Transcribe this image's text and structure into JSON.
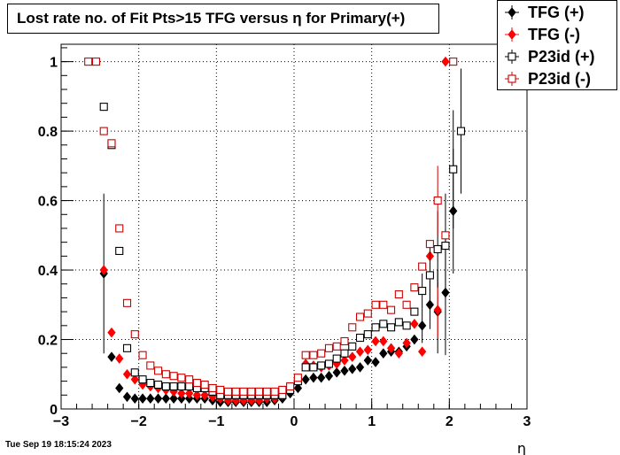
{
  "title": "Lost rate no. of Fit Pts>15 TFG versus η for Primary(+)",
  "timestamp": "Tue Sep 19 18:15:24 2023",
  "chart_data": {
    "type": "scatter",
    "xlabel": "η",
    "ylabel": "",
    "xlim": [
      -3,
      3
    ],
    "ylim": [
      0,
      1.05
    ],
    "x_ticks": [
      -3,
      -2,
      -1,
      0,
      1,
      2,
      3
    ],
    "x_tick_labels": [
      "−3",
      "−2",
      "−1",
      "0",
      "1",
      "2",
      "3"
    ],
    "y_ticks": [
      0,
      0.2,
      0.4,
      0.6,
      0.8,
      1
    ],
    "y_tick_labels": [
      "0",
      "0.2",
      "0.4",
      "0.6",
      "0.8",
      "1"
    ],
    "grid": true,
    "legend_position": "top-right",
    "series": [
      {
        "name": "TFG (+)",
        "color": "#000000",
        "marker": "diamond-filled",
        "points": [
          [
            -2.45,
            0.39,
            0.23
          ],
          [
            -2.35,
            0.15,
            0
          ],
          [
            -2.25,
            0.06,
            0
          ],
          [
            -2.15,
            0.035,
            0
          ],
          [
            -2.05,
            0.03,
            0
          ],
          [
            -1.95,
            0.03,
            0
          ],
          [
            -1.85,
            0.03,
            0
          ],
          [
            -1.75,
            0.03,
            0
          ],
          [
            -1.65,
            0.03,
            0
          ],
          [
            -1.55,
            0.03,
            0
          ],
          [
            -1.45,
            0.03,
            0
          ],
          [
            -1.35,
            0.03,
            0
          ],
          [
            -1.25,
            0.03,
            0
          ],
          [
            -1.15,
            0.03,
            0
          ],
          [
            -1.05,
            0.025,
            0
          ],
          [
            -0.95,
            0.02,
            0
          ],
          [
            -0.85,
            0.02,
            0
          ],
          [
            -0.75,
            0.02,
            0
          ],
          [
            -0.65,
            0.02,
            0
          ],
          [
            -0.55,
            0.02,
            0
          ],
          [
            -0.45,
            0.02,
            0
          ],
          [
            -0.35,
            0.02,
            0
          ],
          [
            -0.25,
            0.025,
            0
          ],
          [
            -0.15,
            0.03,
            0
          ],
          [
            -0.05,
            0.045,
            0
          ],
          [
            0.05,
            0.06,
            0
          ],
          [
            0.15,
            0.085,
            0
          ],
          [
            0.25,
            0.09,
            0
          ],
          [
            0.35,
            0.09,
            0
          ],
          [
            0.45,
            0.095,
            0
          ],
          [
            0.55,
            0.105,
            0
          ],
          [
            0.65,
            0.11,
            0
          ],
          [
            0.75,
            0.115,
            0
          ],
          [
            0.85,
            0.12,
            0
          ],
          [
            0.95,
            0.14,
            0
          ],
          [
            1.05,
            0.135,
            0
          ],
          [
            1.15,
            0.16,
            0
          ],
          [
            1.25,
            0.165,
            0
          ],
          [
            1.35,
            0.165,
            0
          ],
          [
            1.45,
            0.18,
            0
          ],
          [
            1.55,
            0.2,
            0
          ],
          [
            1.65,
            0.24,
            0.05
          ],
          [
            1.75,
            0.3,
            0.07
          ],
          [
            1.85,
            0.28,
            0.12
          ],
          [
            1.95,
            0.335,
            0.18
          ],
          [
            2.05,
            0.57,
            0.18
          ]
        ]
      },
      {
        "name": "TFG (-)",
        "color": "#ff0000",
        "marker": "diamond-filled",
        "points": [
          [
            -2.45,
            0.4,
            0
          ],
          [
            -2.35,
            0.22,
            0
          ],
          [
            -2.25,
            0.145,
            0
          ],
          [
            -2.15,
            0.1,
            0
          ],
          [
            -2.05,
            0.085,
            0
          ],
          [
            -1.95,
            0.07,
            0
          ],
          [
            -1.85,
            0.065,
            0
          ],
          [
            -1.75,
            0.06,
            0
          ],
          [
            -1.65,
            0.055,
            0
          ],
          [
            -1.55,
            0.05,
            0
          ],
          [
            -1.45,
            0.045,
            0
          ],
          [
            -1.35,
            0.045,
            0
          ],
          [
            -1.25,
            0.04,
            0
          ],
          [
            -1.15,
            0.04,
            0
          ],
          [
            -1.05,
            0.035,
            0
          ],
          [
            -0.95,
            0.03,
            0
          ],
          [
            -0.85,
            0.025,
            0
          ],
          [
            -0.75,
            0.025,
            0
          ],
          [
            -0.65,
            0.025,
            0
          ],
          [
            -0.55,
            0.025,
            0
          ],
          [
            -0.45,
            0.025,
            0
          ],
          [
            -0.35,
            0.03,
            0
          ],
          [
            -0.25,
            0.03,
            0
          ],
          [
            -0.15,
            0.04,
            0
          ],
          [
            -0.05,
            0.06,
            0
          ],
          [
            0.05,
            0.085,
            0
          ],
          [
            0.15,
            0.13,
            0
          ],
          [
            0.25,
            0.125,
            0
          ],
          [
            0.35,
            0.12,
            0
          ],
          [
            0.45,
            0.125,
            0
          ],
          [
            0.55,
            0.13,
            0
          ],
          [
            0.65,
            0.14,
            0
          ],
          [
            0.75,
            0.15,
            0
          ],
          [
            0.85,
            0.165,
            0
          ],
          [
            0.95,
            0.17,
            0
          ],
          [
            1.05,
            0.195,
            0
          ],
          [
            1.15,
            0.195,
            0
          ],
          [
            1.25,
            0.175,
            0
          ],
          [
            1.35,
            0.16,
            0
          ],
          [
            1.45,
            0.19,
            0
          ],
          [
            1.55,
            0.245,
            0
          ],
          [
            1.65,
            0.165,
            0
          ],
          [
            1.75,
            0.44,
            0
          ],
          [
            1.85,
            0.285,
            0.08
          ],
          [
            1.95,
            1.0,
            0
          ]
        ]
      },
      {
        "name": "P23id (+)",
        "color": "#000000",
        "marker": "square-open",
        "points": [
          [
            -2.45,
            0.87,
            0
          ],
          [
            -2.35,
            0.76,
            0
          ],
          [
            -2.25,
            0.455,
            0
          ],
          [
            -2.15,
            0.175,
            0
          ],
          [
            -2.05,
            0.105,
            0
          ],
          [
            -1.95,
            0.085,
            0
          ],
          [
            -1.85,
            0.075,
            0
          ],
          [
            -1.75,
            0.07,
            0
          ],
          [
            -1.65,
            0.065,
            0
          ],
          [
            -1.55,
            0.065,
            0
          ],
          [
            -1.45,
            0.065,
            0
          ],
          [
            -1.35,
            0.065,
            0
          ],
          [
            -1.25,
            0.06,
            0
          ],
          [
            -1.15,
            0.06,
            0
          ],
          [
            -1.05,
            0.05,
            0
          ],
          [
            -0.95,
            0.04,
            0
          ],
          [
            -0.85,
            0.04,
            0
          ],
          [
            -0.75,
            0.04,
            0
          ],
          [
            -0.65,
            0.04,
            0
          ],
          [
            -0.55,
            0.04,
            0
          ],
          [
            -0.45,
            0.04,
            0
          ],
          [
            -0.35,
            0.04,
            0
          ],
          [
            -0.25,
            0.04,
            0
          ],
          [
            -0.15,
            0.04,
            0
          ],
          [
            -0.05,
            0.055,
            0
          ],
          [
            0.05,
            0.08,
            0
          ],
          [
            0.15,
            0.12,
            0
          ],
          [
            0.25,
            0.12,
            0
          ],
          [
            0.35,
            0.125,
            0
          ],
          [
            0.45,
            0.13,
            0
          ],
          [
            0.55,
            0.145,
            0
          ],
          [
            0.65,
            0.16,
            0
          ],
          [
            0.75,
            0.18,
            0
          ],
          [
            0.85,
            0.205,
            0
          ],
          [
            0.95,
            0.215,
            0
          ],
          [
            1.05,
            0.235,
            0
          ],
          [
            1.15,
            0.245,
            0
          ],
          [
            1.25,
            0.235,
            0
          ],
          [
            1.35,
            0.25,
            0
          ],
          [
            1.45,
            0.24,
            0
          ],
          [
            1.55,
            0.28,
            0
          ],
          [
            1.65,
            0.34,
            0.05
          ],
          [
            1.75,
            0.385,
            0.08
          ],
          [
            1.85,
            0.46,
            0.11
          ],
          [
            1.95,
            0.47,
            0.15
          ],
          [
            2.05,
            0.69,
            0.17
          ],
          [
            2.15,
            0.8,
            0.18
          ]
        ]
      },
      {
        "name": "P23id (-)",
        "color": "#cc0000",
        "marker": "square-open",
        "points": [
          [
            -2.65,
            1.0,
            0
          ],
          [
            -2.55,
            1.0,
            0
          ],
          [
            -2.45,
            0.8,
            0
          ],
          [
            -2.35,
            0.765,
            0
          ],
          [
            -2.25,
            0.52,
            0
          ],
          [
            -2.15,
            0.305,
            0
          ],
          [
            -2.05,
            0.215,
            0
          ],
          [
            -1.95,
            0.155,
            0
          ],
          [
            -1.85,
            0.125,
            0
          ],
          [
            -1.75,
            0.11,
            0
          ],
          [
            -1.65,
            0.1,
            0
          ],
          [
            -1.55,
            0.095,
            0
          ],
          [
            -1.45,
            0.09,
            0
          ],
          [
            -1.35,
            0.085,
            0
          ],
          [
            -1.25,
            0.075,
            0
          ],
          [
            -1.15,
            0.07,
            0
          ],
          [
            -1.05,
            0.06,
            0
          ],
          [
            -0.95,
            0.055,
            0
          ],
          [
            -0.85,
            0.05,
            0
          ],
          [
            -0.75,
            0.05,
            0
          ],
          [
            -0.65,
            0.05,
            0
          ],
          [
            -0.55,
            0.05,
            0
          ],
          [
            -0.45,
            0.05,
            0
          ],
          [
            -0.35,
            0.05,
            0
          ],
          [
            -0.25,
            0.05,
            0
          ],
          [
            -0.15,
            0.055,
            0
          ],
          [
            -0.05,
            0.065,
            0
          ],
          [
            0.05,
            0.09,
            0
          ],
          [
            0.15,
            0.155,
            0
          ],
          [
            0.25,
            0.155,
            0
          ],
          [
            0.35,
            0.16,
            0
          ],
          [
            0.45,
            0.175,
            0
          ],
          [
            0.55,
            0.18,
            0
          ],
          [
            0.65,
            0.195,
            0
          ],
          [
            0.75,
            0.235,
            0
          ],
          [
            0.85,
            0.265,
            0
          ],
          [
            0.95,
            0.275,
            0
          ],
          [
            1.05,
            0.3,
            0
          ],
          [
            1.15,
            0.3,
            0
          ],
          [
            1.25,
            0.285,
            0
          ],
          [
            1.35,
            0.33,
            0
          ],
          [
            1.45,
            0.3,
            0
          ],
          [
            1.55,
            0.35,
            0
          ],
          [
            1.65,
            0.41,
            0
          ],
          [
            1.75,
            0.475,
            0
          ],
          [
            1.85,
            0.6,
            0.1
          ],
          [
            1.95,
            0.5,
            0
          ],
          [
            2.05,
            1.0,
            0
          ]
        ]
      }
    ]
  }
}
